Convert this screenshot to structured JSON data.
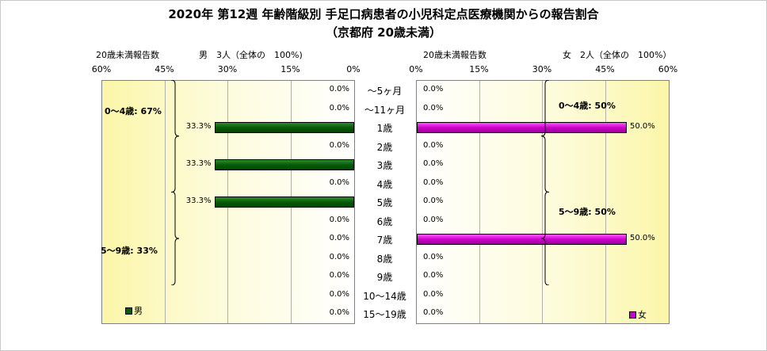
{
  "title": "2020年 第12週 年齢階級別 手足口病患者の小児科定点医療機関からの報告割合",
  "subtitle": "（京都府 20歳未満）",
  "left_note": "20歳未満報告数",
  "left_summary": "男　3人（全体の　100%)",
  "right_note": "20歳未満報告数",
  "right_summary": "女　2人（全体の　100%）",
  "chart_data": {
    "type": "bar",
    "orientation": "horizontal-butterfly",
    "categories": [
      "～5ヶ月",
      "～11ヶ月",
      "1歳",
      "2歳",
      "3歳",
      "4歳",
      "5歳",
      "6歳",
      "7歳",
      "8歳",
      "9歳",
      "10～14歳",
      "15～19歳"
    ],
    "axis_ticks": [
      "60%",
      "45%",
      "30%",
      "15%",
      "0%"
    ],
    "axis_ticks_right": [
      "0%",
      "15%",
      "30%",
      "45%",
      "60%"
    ],
    "xlim": [
      0,
      60
    ],
    "series": [
      {
        "name": "男",
        "color": "#0a5a0a",
        "values": [
          0,
          0,
          33.3,
          0,
          33.3,
          0,
          33.3,
          0,
          0,
          0,
          0,
          0,
          0
        ],
        "labels": [
          "0.0%",
          "0.0%",
          "33.3%",
          "0.0%",
          "33.3%",
          "0.0%",
          "33.3%",
          "0.0%",
          "0.0%",
          "0.0%",
          "0.0%",
          "0.0%",
          "0.0%"
        ]
      },
      {
        "name": "女",
        "color": "#cc00cc",
        "values": [
          0,
          0,
          50,
          0,
          0,
          0,
          0,
          0,
          50,
          0,
          0,
          0,
          0
        ],
        "labels": [
          "0.0%",
          "0.0%",
          "50.0%",
          "0.0%",
          "0.0%",
          "0.0%",
          "0.0%",
          "0.0%",
          "50.0%",
          "0.0%",
          "0.0%",
          "0.0%",
          "0.0%"
        ]
      }
    ],
    "groups": {
      "male": [
        {
          "label": "0～4歳: 67%",
          "from": 0,
          "to": 5
        },
        {
          "label": "5～9歳: 33%",
          "from": 6,
          "to": 10
        }
      ],
      "female": [
        {
          "label": "0～4歳: 50%",
          "from": 0,
          "to": 5
        },
        {
          "label": "5～9歳: 50%",
          "from": 6,
          "to": 10
        }
      ]
    },
    "legend": [
      "男",
      "女"
    ]
  }
}
